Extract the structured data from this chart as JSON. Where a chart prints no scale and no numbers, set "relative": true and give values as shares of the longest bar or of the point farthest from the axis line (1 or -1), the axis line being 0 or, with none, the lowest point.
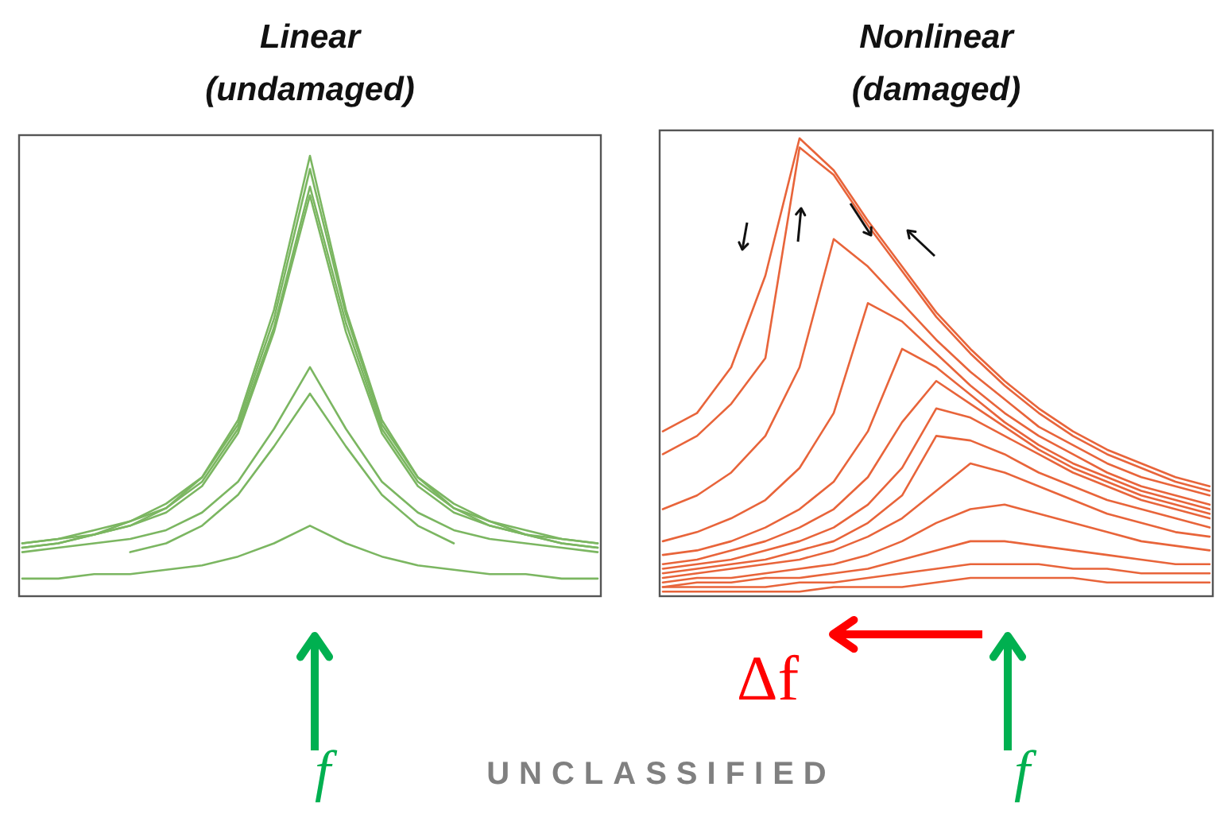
{
  "chart_data": [
    {
      "type": "line",
      "title": "Linear\n(undamaged)",
      "relative": true,
      "categories": [
        null,
        null,
        null,
        null,
        null,
        null,
        null,
        null,
        null,
        null,
        null,
        null,
        null,
        null,
        null,
        null,
        null
      ],
      "annotations": [
        "f",
        "UNCLASSIFIED"
      ],
      "series": [
        {
          "color": "#7bb661",
          "values": [
            0.12,
            0.13,
            0.15,
            0.17,
            0.21,
            0.27,
            0.4,
            0.65,
            1.0,
            0.65,
            0.4,
            0.27,
            0.21,
            0.17,
            0.15,
            0.13,
            0.12
          ]
        },
        {
          "color": "#7bb661",
          "values": [
            0.12,
            0.13,
            0.14,
            0.17,
            0.2,
            0.27,
            0.39,
            0.63,
            0.97,
            0.64,
            0.39,
            0.27,
            0.2,
            0.17,
            0.14,
            0.13,
            0.12
          ]
        },
        {
          "color": "#7bb661",
          "values": [
            0.11,
            0.12,
            0.14,
            0.16,
            0.2,
            0.26,
            0.38,
            0.61,
            0.93,
            0.62,
            0.38,
            0.26,
            0.2,
            0.16,
            0.14,
            0.12,
            0.11
          ]
        },
        {
          "color": "#7bb661",
          "values": [
            0.11,
            0.12,
            0.14,
            0.16,
            0.19,
            0.25,
            0.37,
            0.6,
            0.91,
            0.6,
            0.37,
            0.25,
            0.19,
            0.16,
            0.14,
            0.12,
            0.11
          ]
        },
        {
          "color": "#7bb661",
          "values": [
            0.1,
            0.11,
            0.12,
            0.13,
            0.15,
            0.19,
            0.26,
            0.38,
            0.52,
            0.38,
            0.26,
            0.19,
            0.15,
            0.13,
            0.12,
            0.11,
            0.1
          ]
        },
        {
          "color": "#7bb661",
          "values": [
            null,
            null,
            null,
            0.1,
            0.12,
            0.16,
            0.23,
            0.34,
            0.46,
            0.34,
            0.23,
            0.16,
            0.12,
            null,
            null,
            null,
            null
          ]
        },
        {
          "color": "#7bb661",
          "values": [
            0.04,
            0.04,
            0.05,
            0.05,
            0.06,
            0.07,
            0.09,
            0.12,
            0.16,
            0.12,
            0.09,
            0.07,
            0.06,
            0.05,
            0.05,
            0.04,
            0.04
          ]
        }
      ]
    },
    {
      "type": "line",
      "title": "Nonlinear\n(damaged)",
      "relative": true,
      "categories": [
        null,
        null,
        null,
        null,
        null,
        null,
        null,
        null,
        null,
        null,
        null,
        null,
        null,
        null,
        null,
        null,
        null
      ],
      "annotations": [
        "Δf",
        "f"
      ],
      "series": [
        {
          "color": "#e8643a",
          "values": [
            0.36,
            0.4,
            0.5,
            0.7,
            1.0,
            0.93,
            0.82,
            0.72,
            0.62,
            0.54,
            0.47,
            0.41,
            0.36,
            0.32,
            0.29,
            0.26,
            0.24
          ]
        },
        {
          "color": "#e8643a",
          "values": [
            0.31,
            0.35,
            0.42,
            0.52,
            0.98,
            0.92,
            0.81,
            0.71,
            0.61,
            0.53,
            0.46,
            0.4,
            0.35,
            0.31,
            0.28,
            0.25,
            0.23
          ]
        },
        {
          "color": "#e8643a",
          "values": [
            0.19,
            0.22,
            0.27,
            0.35,
            0.5,
            0.78,
            0.72,
            0.64,
            0.56,
            0.49,
            0.43,
            0.37,
            0.33,
            0.29,
            0.26,
            0.24,
            0.22
          ]
        },
        {
          "color": "#e8643a",
          "values": [
            0.12,
            0.14,
            0.17,
            0.21,
            0.28,
            0.4,
            0.64,
            0.6,
            0.53,
            0.46,
            0.4,
            0.35,
            0.31,
            0.27,
            0.24,
            0.22,
            0.2
          ]
        },
        {
          "color": "#e8643a",
          "values": [
            0.09,
            0.1,
            0.12,
            0.15,
            0.19,
            0.25,
            0.36,
            0.54,
            0.5,
            0.44,
            0.38,
            0.33,
            0.29,
            0.26,
            0.23,
            0.21,
            0.19
          ]
        },
        {
          "color": "#e8643a",
          "values": [
            0.07,
            0.08,
            0.1,
            0.12,
            0.15,
            0.19,
            0.26,
            0.38,
            0.47,
            0.42,
            0.37,
            0.32,
            0.28,
            0.25,
            0.22,
            0.2,
            0.18
          ]
        },
        {
          "color": "#e8643a",
          "values": [
            0.06,
            0.07,
            0.08,
            0.1,
            0.12,
            0.15,
            0.2,
            0.28,
            0.41,
            0.39,
            0.35,
            0.31,
            0.27,
            0.24,
            0.21,
            0.19,
            0.17
          ]
        },
        {
          "color": "#e8643a",
          "values": [
            0.05,
            0.06,
            0.07,
            0.08,
            0.1,
            0.12,
            0.16,
            0.22,
            0.35,
            0.34,
            0.31,
            0.27,
            0.24,
            0.21,
            0.19,
            0.17,
            0.15
          ]
        },
        {
          "color": "#e8643a",
          "values": [
            0.04,
            0.05,
            0.06,
            0.07,
            0.08,
            0.1,
            0.13,
            0.17,
            0.23,
            0.29,
            0.27,
            0.24,
            0.21,
            0.18,
            0.16,
            0.14,
            0.13
          ]
        },
        {
          "color": "#e8643a",
          "values": [
            0.03,
            0.04,
            0.04,
            0.05,
            0.06,
            0.07,
            0.09,
            0.12,
            0.16,
            0.19,
            0.2,
            0.18,
            0.16,
            0.14,
            0.12,
            0.11,
            0.1
          ]
        },
        {
          "color": "#e8643a",
          "values": [
            0.02,
            0.03,
            0.03,
            0.04,
            0.04,
            0.05,
            0.06,
            0.08,
            0.1,
            0.12,
            0.12,
            0.11,
            0.1,
            0.09,
            0.08,
            0.07,
            0.07
          ]
        },
        {
          "color": "#e8643a",
          "values": [
            0.02,
            0.02,
            0.02,
            0.02,
            0.03,
            0.03,
            0.04,
            0.05,
            0.06,
            0.07,
            0.07,
            0.07,
            0.06,
            0.06,
            0.05,
            0.05,
            0.05
          ]
        },
        {
          "color": "#e8643a",
          "values": [
            0.01,
            0.01,
            0.01,
            0.01,
            0.01,
            0.02,
            0.02,
            0.02,
            0.03,
            0.04,
            0.04,
            0.04,
            0.04,
            0.03,
            0.03,
            0.03,
            0.03
          ]
        }
      ]
    }
  ]
}
